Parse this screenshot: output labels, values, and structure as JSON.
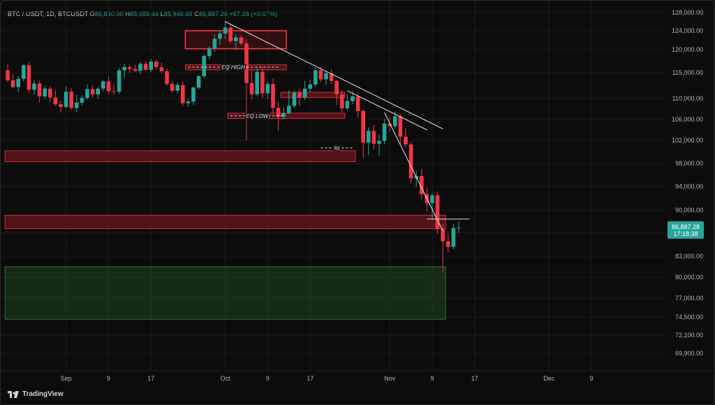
{
  "header": {
    "symbol": "BTC / USDT, 1D, BTCUSDT",
    "o_label": "O",
    "o_value": "86,830.00",
    "h_label": "H",
    "h_value": "88,059.44",
    "l_label": "L",
    "l_value": "85,946.65",
    "c_label": "C",
    "c_value": "86,887.28",
    "change": "+57.28 (+0.07%)"
  },
  "price_tag": {
    "value": "86,887.28",
    "countdown": "17:18:38",
    "color": "#26a69a"
  },
  "footer": {
    "brand": "TradingView"
  },
  "colors": {
    "up": "#26a69a",
    "down": "#f23645",
    "zone_red": "#f23645",
    "zone_green": "#2e7d32",
    "trendline": "#e0e0e0"
  },
  "chart_data": {
    "type": "candlestick",
    "y_ticks": [
      "128,000.00",
      "124,000.00",
      "120,000.00",
      "115,000.00",
      "110,000.00",
      "106,000.00",
      "102,000.00",
      "98,000.00",
      "94,000.00",
      "90,000.00",
      "86,000.00",
      "83,000.00",
      "80,000.00",
      "77,000.00",
      "74,500.00",
      "72,100.00",
      "69,900.00"
    ],
    "x_ticks": [
      "Sep",
      "9",
      "17",
      "Oct",
      "9",
      "17",
      "Nov",
      "9",
      "17",
      "Dec",
      "9"
    ],
    "x_tick_dates": [
      "2025-09-01",
      "2025-09-09",
      "2025-09-17",
      "2025-10-01",
      "2025-10-09",
      "2025-10-17",
      "2025-11-01",
      "2025-11-09",
      "2025-11-17",
      "2025-12-01",
      "2025-12-09"
    ],
    "first_candle_date": "2025-08-21",
    "candles": [
      [
        115500,
        116800,
        113200,
        113500
      ],
      [
        113500,
        114800,
        111900,
        112200
      ],
      [
        112200,
        114300,
        111200,
        113800
      ],
      [
        113800,
        116900,
        113300,
        116600
      ],
      [
        116600,
        117300,
        111100,
        111700
      ],
      [
        111700,
        113600,
        110700,
        112900
      ],
      [
        112900,
        113400,
        109200,
        110400
      ],
      [
        110400,
        112500,
        109900,
        111900
      ],
      [
        111900,
        112300,
        109300,
        110200
      ],
      [
        110200,
        111700,
        108600,
        108900
      ],
      [
        108900,
        109600,
        107300,
        108400
      ],
      [
        108400,
        112300,
        108100,
        111300
      ],
      [
        111300,
        112000,
        107900,
        108200
      ],
      [
        108200,
        110700,
        107400,
        109200
      ],
      [
        109200,
        110600,
        108700,
        110100
      ],
      [
        110100,
        112700,
        109800,
        111800
      ],
      [
        111800,
        112500,
        110100,
        110800
      ],
      [
        110800,
        112200,
        109900,
        111900
      ],
      [
        111900,
        113600,
        111400,
        113300
      ],
      [
        113300,
        114200,
        110900,
        111400
      ],
      [
        111400,
        112900,
        110700,
        111300
      ],
      [
        111300,
        116000,
        110900,
        115500
      ],
      [
        115500,
        116900,
        114100,
        116200
      ],
      [
        116200,
        116800,
        114900,
        115800
      ],
      [
        115800,
        116700,
        115100,
        115400
      ],
      [
        115400,
        117300,
        114700,
        116900
      ],
      [
        116900,
        117500,
        115300,
        115600
      ],
      [
        115600,
        118000,
        115100,
        117400
      ],
      [
        117400,
        117800,
        115700,
        116200
      ],
      [
        116200,
        117200,
        114800,
        115300
      ],
      [
        115300,
        115900,
        112400,
        112800
      ],
      [
        112800,
        113300,
        111100,
        111500
      ],
      [
        111500,
        113100,
        110900,
        112600
      ],
      [
        112600,
        113300,
        108600,
        109100
      ],
      [
        109100,
        109900,
        108400,
        109400
      ],
      [
        109400,
        112300,
        108800,
        112100
      ],
      [
        112100,
        114500,
        111800,
        114300
      ],
      [
        114300,
        119000,
        113900,
        118600
      ],
      [
        118600,
        120700,
        117900,
        120200
      ],
      [
        120200,
        123200,
        119500,
        122300
      ],
      [
        122300,
        124100,
        121000,
        123400
      ],
      [
        123400,
        126200,
        122200,
        124700
      ],
      [
        124700,
        125300,
        121300,
        121800
      ],
      [
        121800,
        123300,
        119900,
        122600
      ],
      [
        122600,
        123000,
        120800,
        121300
      ],
      [
        121300,
        122200,
        102000,
        113000
      ],
      [
        113000,
        115600,
        109800,
        110800
      ],
      [
        110800,
        115900,
        110400,
        115200
      ],
      [
        115200,
        116100,
        110100,
        111000
      ],
      [
        111000,
        113300,
        109900,
        112800
      ],
      [
        112800,
        113900,
        107100,
        108200
      ],
      [
        108200,
        109400,
        103800,
        106500
      ],
      [
        106500,
        108300,
        106000,
        107200
      ],
      [
        107200,
        111600,
        106900,
        108600
      ],
      [
        108600,
        111500,
        108200,
        111100
      ],
      [
        111100,
        111800,
        108700,
        110200
      ],
      [
        110200,
        113400,
        109700,
        111900
      ],
      [
        111900,
        113600,
        111200,
        112700
      ],
      [
        112700,
        116100,
        112300,
        115500
      ],
      [
        115500,
        116200,
        113200,
        113700
      ],
      [
        113700,
        115400,
        112600,
        114900
      ],
      [
        114900,
        115700,
        112800,
        113400
      ],
      [
        113400,
        113600,
        108700,
        110800
      ],
      [
        110800,
        111500,
        107400,
        108100
      ],
      [
        108100,
        110800,
        107700,
        109500
      ],
      [
        109500,
        111400,
        108900,
        110400
      ],
      [
        110400,
        111100,
        106300,
        107600
      ],
      [
        107600,
        107900,
        98900,
        101600
      ],
      [
        101600,
        104500,
        99400,
        103800
      ],
      [
        103800,
        104900,
        100400,
        101400
      ],
      [
        101400,
        103100,
        99300,
        101900
      ],
      [
        101900,
        106100,
        101300,
        105200
      ],
      [
        105200,
        106600,
        103600,
        104700
      ],
      [
        104700,
        107500,
        104200,
        106600
      ],
      [
        106600,
        107100,
        101200,
        102700
      ],
      [
        102700,
        104300,
        100800,
        101300
      ],
      [
        101300,
        101700,
        94500,
        95400
      ],
      [
        95400,
        96700,
        93900,
        95800
      ],
      [
        95800,
        97100,
        91800,
        92700
      ],
      [
        92700,
        93800,
        89800,
        91200
      ],
      [
        91200,
        92900,
        88300,
        92500
      ],
      [
        92500,
        93100,
        85800,
        86600
      ],
      [
        86600,
        87400,
        80600,
        84900
      ],
      [
        84900,
        85900,
        83500,
        84200
      ],
      [
        84200,
        87600,
        83900,
        86800
      ],
      [
        86830,
        88059,
        85947,
        86887
      ]
    ],
    "zones": [
      {
        "color": "red",
        "y_top": 124000,
        "y_bottom": 120200,
        "start_index": 34,
        "end_index": 52,
        "style": "outline"
      },
      {
        "color": "red",
        "y_top": 116700,
        "y_bottom": 115600,
        "start_index": 34,
        "end_index": 52,
        "style": "fill"
      },
      {
        "color": "red",
        "y_top": 111200,
        "y_bottom": 110200,
        "start_index": 52,
        "end_index": 63,
        "style": "fill"
      },
      {
        "color": "red",
        "y_top": 107200,
        "y_bottom": 106200,
        "start_index": 42,
        "end_index": 63,
        "style": "fill"
      },
      {
        "color": "red",
        "y_top": 100200,
        "y_bottom": 98300,
        "start_index": 0,
        "end_index": 65,
        "style": "fill"
      },
      {
        "color": "red",
        "y_top": 89100,
        "y_bottom": 86700,
        "start_index": 0,
        "end_index": 82,
        "style": "fill"
      },
      {
        "color": "green",
        "y_top": 81500,
        "y_bottom": 74200,
        "start_index": 0,
        "end_index": 82,
        "style": "fill"
      }
    ],
    "annotations": [
      {
        "text": "EQ HIGH",
        "y": 116200,
        "start_index": 34,
        "end_index": 51
      },
      {
        "text": "EQ LOW",
        "y": 106700,
        "start_index": 42,
        "end_index": 52
      },
      {
        "text": "liq",
        "y": 100700,
        "start_index": 59,
        "end_index": 65
      }
    ]
  }
}
